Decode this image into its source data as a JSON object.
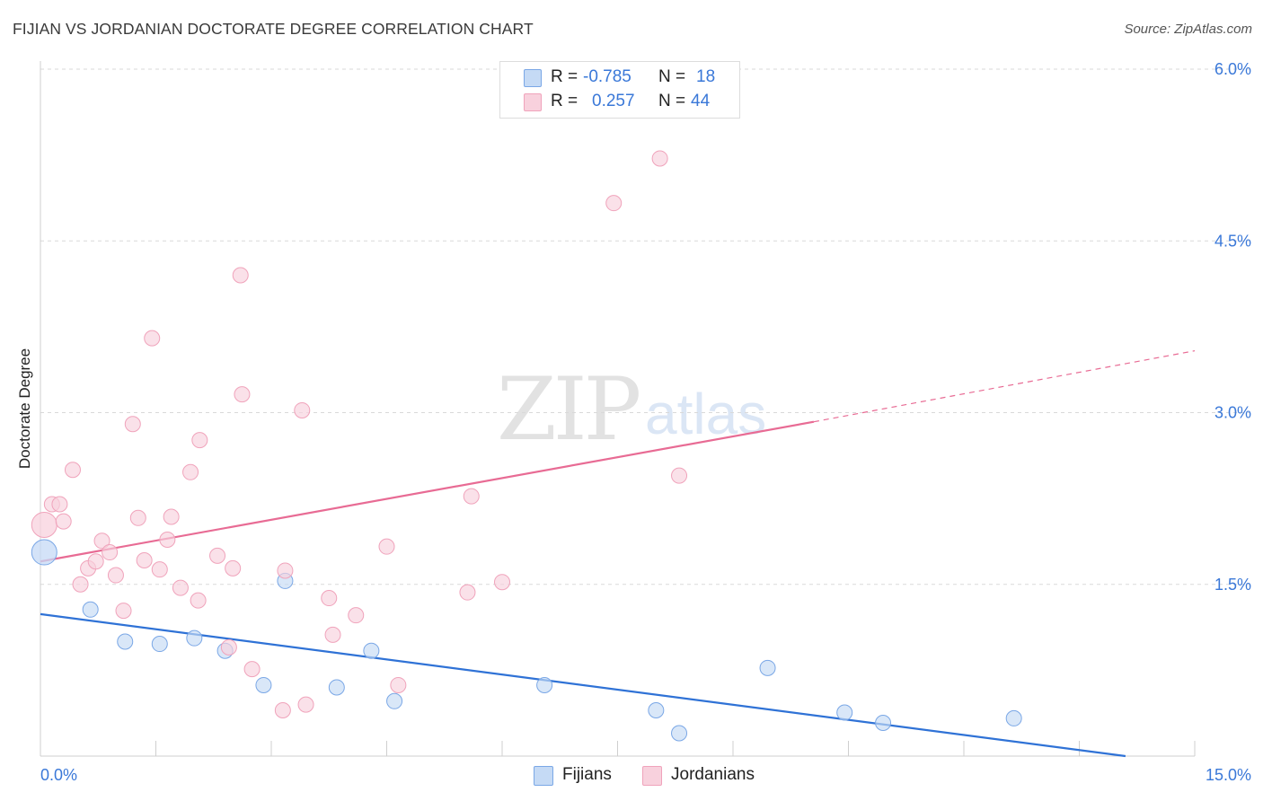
{
  "chart_data": {
    "type": "scatter",
    "title": "FIJIAN VS JORDANIAN DOCTORATE DEGREE CORRELATION CHART",
    "source": "Source: ZipAtlas.com",
    "xlabel": "",
    "ylabel": "Doctorate Degree",
    "xlim": [
      0,
      15
    ],
    "ylim": [
      0,
      6.2
    ],
    "x_tick_labels": {
      "min": "0.0%",
      "max": "15.0%"
    },
    "y_tick_labels": [
      {
        "value": 1.5,
        "label": "1.5%"
      },
      {
        "value": 3.0,
        "label": "3.0%"
      },
      {
        "value": 4.5,
        "label": "4.5%"
      },
      {
        "value": 6.0,
        "label": "6.0%"
      }
    ],
    "grid": true,
    "watermark": {
      "part1": "ZIP",
      "part2": "atlas"
    },
    "legend": {
      "r_label": "R =",
      "n_label": "N =",
      "entries": [
        {
          "r": "-0.785",
          "n": "18"
        },
        {
          "r": "0.257",
          "n": "44"
        }
      ]
    },
    "series": [
      {
        "name": "Fijians",
        "color": "#7aa7e6",
        "fill": "#c5daf5",
        "line_color": "#2f72d6",
        "trend": {
          "x": [
            0,
            14.1
          ],
          "y": [
            1.24,
            0.0
          ],
          "dashed_to": null
        },
        "points": [
          [
            0.05,
            1.78
          ],
          [
            0.65,
            1.28
          ],
          [
            1.1,
            1.0
          ],
          [
            1.55,
            0.98
          ],
          [
            2.0,
            1.03
          ],
          [
            2.4,
            0.92
          ],
          [
            2.9,
            0.62
          ],
          [
            3.18,
            1.53
          ],
          [
            3.85,
            0.6
          ],
          [
            4.3,
            0.92
          ],
          [
            4.6,
            0.48
          ],
          [
            6.55,
            0.62
          ],
          [
            8.0,
            0.4
          ],
          [
            8.3,
            0.2
          ],
          [
            9.45,
            0.77
          ],
          [
            10.45,
            0.38
          ],
          [
            10.95,
            0.29
          ],
          [
            12.65,
            0.33
          ]
        ],
        "large_point_index": 0
      },
      {
        "name": "Jordanians",
        "color": "#f0a3bb",
        "fill": "#f8d1dd",
        "line_color": "#e86b94",
        "trend": {
          "x": [
            0,
            10.05
          ],
          "y": [
            1.7,
            2.92
          ],
          "dashed_to": [
            15.0,
            3.54
          ]
        },
        "points": [
          [
            0.05,
            2.02
          ],
          [
            0.15,
            2.2
          ],
          [
            0.25,
            2.2
          ],
          [
            0.3,
            2.05
          ],
          [
            0.42,
            2.5
          ],
          [
            0.52,
            1.5
          ],
          [
            0.62,
            1.64
          ],
          [
            0.72,
            1.7
          ],
          [
            0.8,
            1.88
          ],
          [
            0.9,
            1.78
          ],
          [
            0.98,
            1.58
          ],
          [
            1.08,
            1.27
          ],
          [
            1.2,
            2.9
          ],
          [
            1.27,
            2.08
          ],
          [
            1.35,
            1.71
          ],
          [
            1.45,
            3.65
          ],
          [
            1.55,
            1.63
          ],
          [
            1.65,
            1.89
          ],
          [
            1.7,
            2.09
          ],
          [
            1.82,
            1.47
          ],
          [
            1.95,
            2.48
          ],
          [
            2.05,
            1.36
          ],
          [
            2.07,
            2.76
          ],
          [
            2.3,
            1.75
          ],
          [
            2.45,
            0.95
          ],
          [
            2.5,
            1.64
          ],
          [
            2.6,
            4.2
          ],
          [
            2.62,
            3.16
          ],
          [
            2.75,
            0.76
          ],
          [
            3.15,
            0.4
          ],
          [
            3.18,
            1.62
          ],
          [
            3.4,
            3.02
          ],
          [
            3.45,
            0.45
          ],
          [
            3.75,
            1.38
          ],
          [
            3.8,
            1.06
          ],
          [
            4.1,
            1.23
          ],
          [
            4.5,
            1.83
          ],
          [
            4.65,
            0.62
          ],
          [
            5.55,
            1.43
          ],
          [
            5.6,
            2.27
          ],
          [
            6.0,
            1.52
          ],
          [
            7.45,
            4.83
          ],
          [
            8.05,
            5.22
          ],
          [
            8.3,
            2.45
          ]
        ],
        "large_point_index": 0
      }
    ]
  }
}
